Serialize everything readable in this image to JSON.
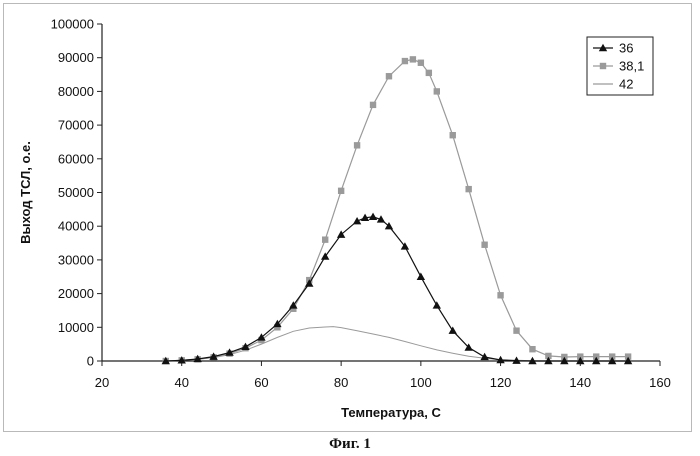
{
  "chart_data": {
    "type": "line",
    "title": "",
    "xlabel": "Температура, С",
    "ylabel": "Выход ТСЛ, о.е.",
    "xlim": [
      20,
      160
    ],
    "ylim": [
      0,
      100000
    ],
    "x_ticks": [
      "20",
      "40",
      "60",
      "80",
      "100",
      "120",
      "140",
      "160"
    ],
    "y_ticks": [
      "0",
      "10000",
      "20000",
      "30000",
      "40000",
      "50000",
      "60000",
      "70000",
      "80000",
      "90000",
      "100000"
    ],
    "legend_position": "top-right",
    "grid": false,
    "series": [
      {
        "name": "36",
        "marker": "triangle",
        "color": "#111111",
        "x": [
          36,
          40,
          44,
          48,
          52,
          56,
          60,
          64,
          68,
          72,
          76,
          80,
          84,
          86,
          88,
          90,
          92,
          96,
          100,
          104,
          108,
          112,
          116,
          120,
          124,
          128,
          132,
          136,
          140,
          144,
          148,
          152
        ],
        "y": [
          0,
          200,
          600,
          1300,
          2500,
          4200,
          7000,
          11000,
          16500,
          23000,
          31000,
          37500,
          41500,
          42500,
          42800,
          42000,
          40000,
          34000,
          25000,
          16500,
          9000,
          4000,
          1200,
          300,
          100,
          0,
          0,
          0,
          0,
          0,
          0,
          0
        ]
      },
      {
        "name": "38,1",
        "marker": "square",
        "color": "#9a9a9a",
        "x": [
          36,
          40,
          44,
          48,
          52,
          56,
          60,
          64,
          68,
          72,
          76,
          80,
          84,
          88,
          92,
          96,
          98,
          100,
          102,
          104,
          108,
          112,
          116,
          120,
          124,
          128,
          132,
          136,
          140,
          144,
          148,
          152
        ],
        "y": [
          0,
          200,
          500,
          1100,
          2200,
          3800,
          6200,
          10000,
          15500,
          24000,
          36000,
          50500,
          64000,
          76000,
          84500,
          89000,
          89500,
          88500,
          85500,
          80000,
          67000,
          51000,
          34500,
          19500,
          9000,
          3500,
          1500,
          1200,
          1300,
          1300,
          1300,
          1300
        ]
      },
      {
        "name": "42",
        "marker": "none",
        "color": "#9a9a9a",
        "x": [
          36,
          40,
          44,
          48,
          52,
          56,
          60,
          64,
          68,
          72,
          76,
          78,
          80,
          84,
          88,
          92,
          96,
          100,
          104,
          108,
          112,
          116,
          120,
          124,
          128,
          132,
          136,
          140,
          144,
          148,
          152
        ],
        "y": [
          0,
          200,
          500,
          1000,
          1900,
          3200,
          5000,
          7000,
          8800,
          9800,
          10100,
          10200,
          9900,
          9000,
          8000,
          7000,
          5800,
          4500,
          3300,
          2300,
          1400,
          800,
          400,
          200,
          100,
          0,
          0,
          0,
          0,
          0,
          0
        ]
      }
    ]
  },
  "caption": "Фиг. 1"
}
